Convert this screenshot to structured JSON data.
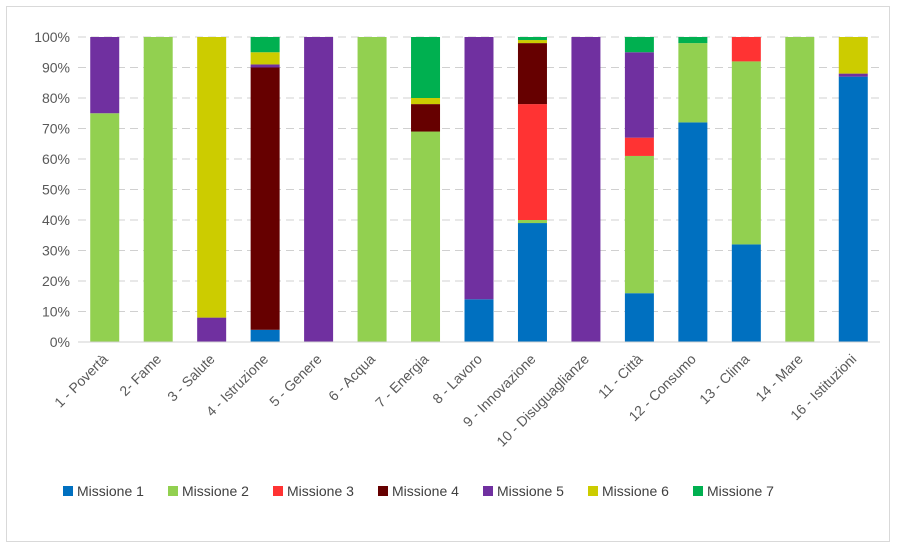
{
  "chart_data": {
    "type": "bar",
    "stacked": "percent",
    "title": "",
    "xlabel": "",
    "ylabel": "",
    "ylim": [
      0,
      100
    ],
    "y_ticks": [
      "0%",
      "10%",
      "20%",
      "30%",
      "40%",
      "50%",
      "60%",
      "70%",
      "80%",
      "90%",
      "100%"
    ],
    "grid": "horizontal dashed",
    "legend_position": "bottom",
    "categories": [
      "1 - Povertà",
      "2- Fame",
      "3 - Salute",
      "4 - Istruzione",
      "5 - Genere",
      "6 - Acqua",
      "7 - Energia",
      "8 - Lavoro",
      "9 - Innovazione",
      "10 - Disuguaglianze",
      "11 - Città",
      "12 - Consumo",
      "13 - Clima",
      "14 - Mare",
      "16 - Istituzioni"
    ],
    "series": [
      {
        "name": "Missione 1",
        "color": "#0070c0",
        "values": [
          0,
          0,
          0,
          4,
          0,
          0,
          0,
          14,
          39,
          0,
          16,
          72,
          32,
          0,
          87
        ]
      },
      {
        "name": "Missione 2",
        "color": "#92d050",
        "values": [
          75,
          100,
          0,
          0,
          0,
          100,
          69,
          0,
          1,
          0,
          45,
          26,
          60,
          100,
          0
        ]
      },
      {
        "name": "Missione 3",
        "color": "#ff3333",
        "values": [
          0,
          0,
          0,
          0,
          0,
          0,
          0,
          0,
          38,
          0,
          6,
          0,
          8,
          0,
          0
        ]
      },
      {
        "name": "Missione 4",
        "color": "#660000",
        "values": [
          0,
          0,
          0,
          86,
          0,
          0,
          9,
          0,
          20,
          0,
          0,
          0,
          0,
          0,
          0
        ]
      },
      {
        "name": "Missione 5",
        "color": "#7030a0",
        "values": [
          25,
          0,
          8,
          1,
          100,
          0,
          0,
          86,
          0,
          100,
          28,
          0,
          0,
          0,
          1
        ]
      },
      {
        "name": "Missione 6",
        "color": "#cccc00",
        "values": [
          0,
          0,
          92,
          4,
          0,
          0,
          2,
          0,
          1,
          0,
          0,
          0,
          0,
          0,
          12
        ]
      },
      {
        "name": "Missione 7",
        "color": "#00b050",
        "values": [
          0,
          0,
          0,
          5,
          0,
          0,
          20,
          0,
          1,
          0,
          5,
          2,
          0,
          0,
          0
        ]
      }
    ]
  }
}
